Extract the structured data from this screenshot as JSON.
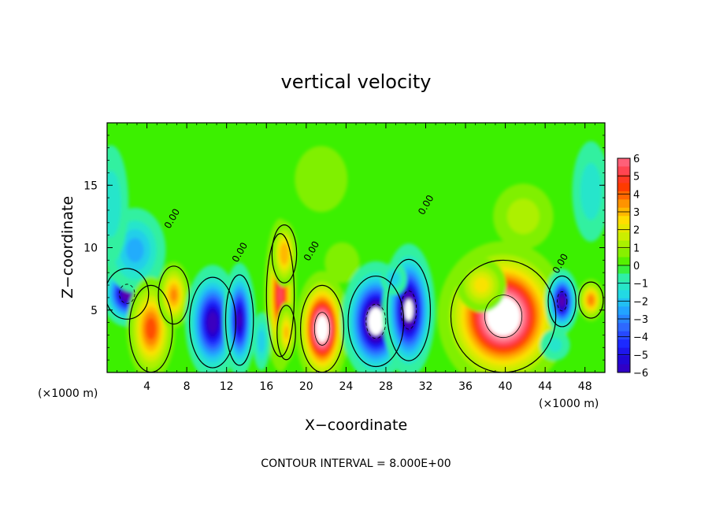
{
  "chart_data": {
    "type": "heatmap",
    "title": "vertical velocity",
    "xlabel": "X−coordinate",
    "ylabel": "Z−coordinate",
    "x_multiplier_label": "(×1000 m)",
    "x_multiplier_label_right": "(×1000 m)",
    "xlim": [
      0,
      50
    ],
    "ylim": [
      0,
      20
    ],
    "x_ticks": [
      4,
      8,
      12,
      16,
      20,
      24,
      28,
      32,
      36,
      40,
      44,
      48
    ],
    "y_ticks": [
      5,
      10,
      15
    ],
    "colorbar": {
      "levels": [
        6,
        5,
        4,
        3,
        2,
        1,
        0,
        -1,
        -2,
        -3,
        -4,
        -5,
        -6
      ],
      "range": [
        -6,
        6
      ]
    },
    "contour_interval_text": "CONTOUR INTERVAL = 8.000E+00",
    "zero_contour_label": "0.00",
    "zero_contour_label_positions": [
      {
        "x": 6.8,
        "z": 12.2
      },
      {
        "x": 13.6,
        "z": 9.5
      },
      {
        "x": 20.8,
        "z": 9.6
      },
      {
        "x": 32.3,
        "z": 13.3
      },
      {
        "x": 45.8,
        "z": 8.6
      }
    ],
    "cells": [
      {
        "x": 2.0,
        "z": 6.3,
        "sx": 1.4,
        "sz": 1.4,
        "w": -7
      },
      {
        "x": 2.8,
        "z": 9.8,
        "sx": 2.0,
        "sz": 2.2,
        "w": -2.5
      },
      {
        "x": 0.4,
        "z": 13.5,
        "sx": 1.3,
        "sz": 3.5,
        "w": -1.5
      },
      {
        "x": 4.4,
        "z": 3.5,
        "sx": 1.4,
        "sz": 2.4,
        "w": 4.4
      },
      {
        "x": 6.7,
        "z": 6.2,
        "sx": 1.0,
        "sz": 1.6,
        "w": 3.6
      },
      {
        "x": 10.6,
        "z": 4.0,
        "sx": 1.5,
        "sz": 2.5,
        "w": -6.3
      },
      {
        "x": 13.3,
        "z": 4.2,
        "sx": 0.9,
        "sz": 2.5,
        "w": -6.0
      },
      {
        "x": 17.4,
        "z": 6.2,
        "sx": 0.9,
        "sz": 3.4,
        "w": 5.4
      },
      {
        "x": 17.8,
        "z": 9.5,
        "sx": 0.8,
        "sz": 1.6,
        "w": 3.5
      },
      {
        "x": 18.0,
        "z": 3.2,
        "sx": 0.6,
        "sz": 1.5,
        "w": 3.0
      },
      {
        "x": 21.6,
        "z": 3.5,
        "sx": 1.4,
        "sz": 2.4,
        "w": 8.2
      },
      {
        "x": 23.6,
        "z": 8.8,
        "sx": 1.5,
        "sz": 1.4,
        "w": 1.0
      },
      {
        "x": 27.0,
        "z": 4.1,
        "sx": 1.8,
        "sz": 2.5,
        "w": -8.2
      },
      {
        "x": 30.3,
        "z": 5.0,
        "sx": 1.4,
        "sz": 2.8,
        "w": -7.5
      },
      {
        "x": 28.8,
        "z": 7.5,
        "sx": 0.9,
        "sz": 0.9,
        "w": -2.0
      },
      {
        "x": 39.8,
        "z": 4.5,
        "sx": 3.4,
        "sz": 3.1,
        "w": 8.6
      },
      {
        "x": 37.6,
        "z": 7.0,
        "sx": 1.6,
        "sz": 1.4,
        "w": 2.5
      },
      {
        "x": 45.7,
        "z": 5.7,
        "sx": 0.9,
        "sz": 1.4,
        "w": -6.8
      },
      {
        "x": 48.6,
        "z": 5.8,
        "sx": 0.8,
        "sz": 1.0,
        "w": 3.8
      },
      {
        "x": 48.6,
        "z": 14.5,
        "sx": 1.4,
        "sz": 3.0,
        "w": -1.5
      },
      {
        "x": 41.8,
        "z": 12.5,
        "sx": 2.3,
        "sz": 2.0,
        "w": 1.4
      },
      {
        "x": 21.5,
        "z": 15.5,
        "sx": 3.0,
        "sz": 3.0,
        "w": 0.6
      },
      {
        "x": 45.0,
        "z": 2.2,
        "sx": 1.2,
        "sz": 1.0,
        "w": -1.2
      },
      {
        "x": 15.5,
        "z": 2.5,
        "sx": 0.6,
        "sz": 1.6,
        "w": -2.0
      }
    ]
  }
}
